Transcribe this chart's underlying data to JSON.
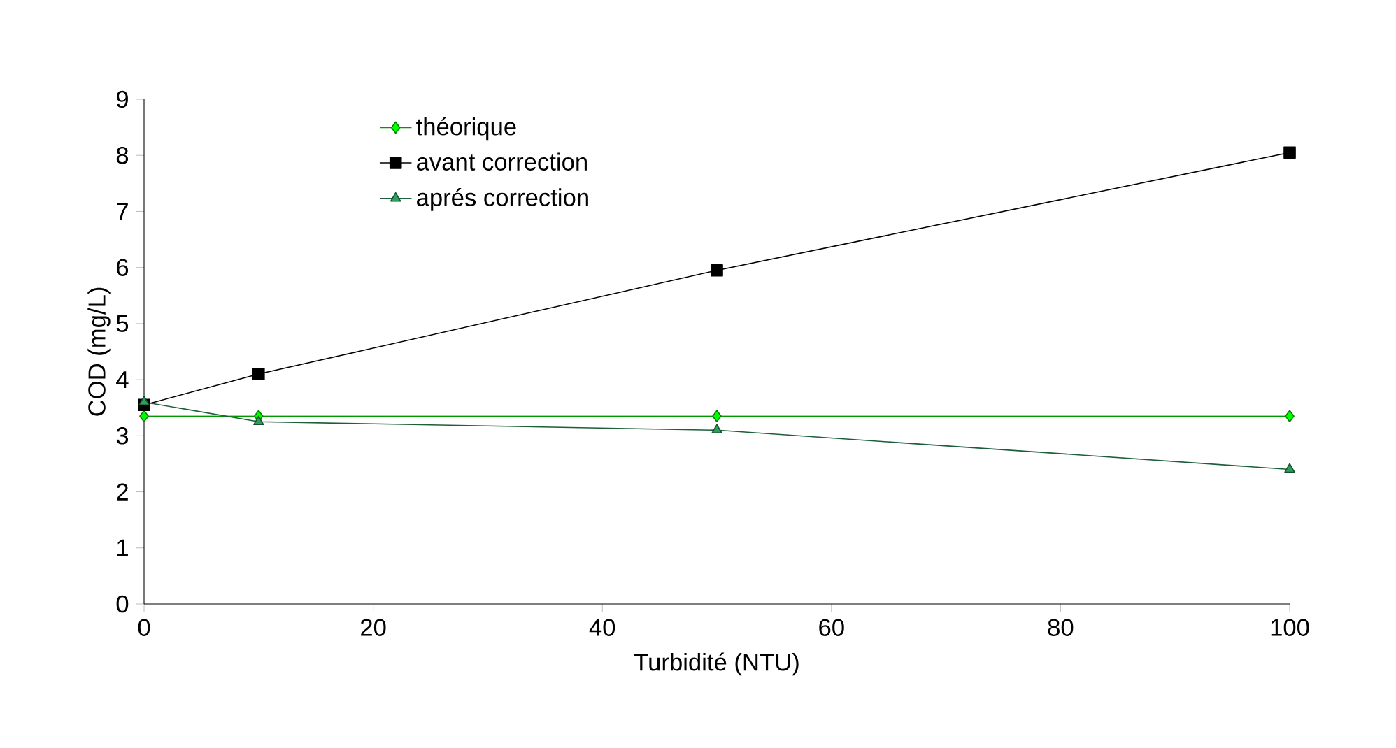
{
  "chart_data": {
    "type": "line",
    "xlabel": "Turbidité (NTU)",
    "ylabel": "COD (mg/L)",
    "x": [
      0,
      10,
      50,
      100
    ],
    "series": [
      {
        "name": "théorique",
        "color": "#00ff00",
        "marker": "diamond",
        "values": [
          3.35,
          3.35,
          3.35,
          3.35
        ]
      },
      {
        "name": "avant correction",
        "color": "#000000",
        "marker": "square",
        "values": [
          3.55,
          4.1,
          5.95,
          8.05
        ]
      },
      {
        "name": "aprés correction",
        "color": "#2e9e5e",
        "marker": "triangle",
        "values": [
          3.6,
          3.25,
          3.1,
          2.4
        ]
      }
    ],
    "xlim": [
      0,
      100
    ],
    "ylim": [
      0,
      9
    ],
    "xticks": [
      0,
      20,
      40,
      60,
      80,
      100
    ],
    "yticks": [
      0,
      1,
      2,
      3,
      4,
      5,
      6,
      7,
      8,
      9
    ],
    "legend": "top left",
    "grid": false,
    "line_style": "solid"
  }
}
